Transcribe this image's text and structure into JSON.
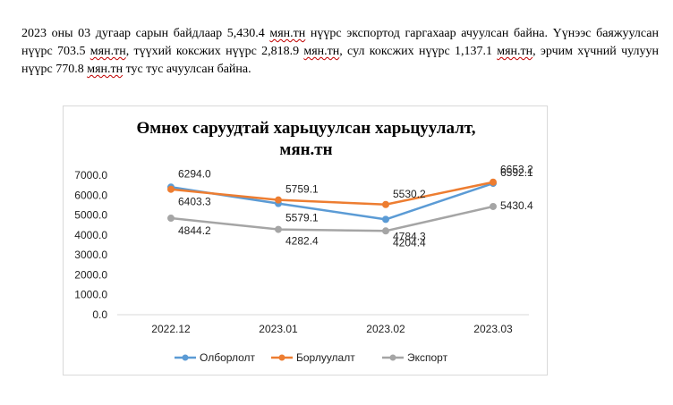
{
  "paragraph": {
    "p1": "2023 оны 03 дугаар сарын байдлаар 5,430.4 ",
    "u1": "мян.тн",
    "p2": " нүүрс экспортод гаргахаар ачуулсан байна. Үүнээс баяжуулсан нүүрс 703.5 ",
    "u2": "мян.тн",
    "p3": ", түүхий коксжих нүүрс 2,818.9 ",
    "u3": "мян.тн",
    "p4": ", сул коксжих нүүрс 1,137.1 ",
    "u4": "мян.тн",
    "p5": ", эрчим хүчний чулуун нүүрс 770.8 ",
    "u5": "мян.тн",
    "p6": " тус тус ачуулсан байна."
  },
  "chart_data": {
    "type": "line",
    "title_line1": "Өмнөх саруудтай харьцуулсан харьцуулалт,",
    "title_line2": "мян.тн",
    "categories": [
      "2022.12",
      "2023.01",
      "2023.02",
      "2023.03"
    ],
    "y_ticks": [
      "0.0",
      "1000.0",
      "2000.0",
      "3000.0",
      "4000.0",
      "5000.0",
      "6000.0",
      "7000.0"
    ],
    "ylim": [
      0,
      7000
    ],
    "grid": false,
    "legend_position": "bottom",
    "series": [
      {
        "name": "Олборлолт",
        "color": "#5b9bd5",
        "values": [
          6403.3,
          5579.1,
          4784.3,
          6592.1
        ],
        "labels": [
          "6403.3",
          "5579.1",
          "4784.3",
          "6592.1"
        ]
      },
      {
        "name": "Борлуулалт",
        "color": "#ed7d31",
        "values": [
          6294.0,
          5759.1,
          5530.2,
          6653.2
        ],
        "labels": [
          "6294.0",
          "5759.1",
          "5530.2",
          "6653.2"
        ]
      },
      {
        "name": "Экспорт",
        "color": "#a5a5a5",
        "values": [
          4844.2,
          4282.4,
          4204.4,
          5430.4
        ],
        "labels": [
          "4844.2",
          "4282.4",
          "4204.4",
          "5430.4"
        ]
      }
    ]
  }
}
